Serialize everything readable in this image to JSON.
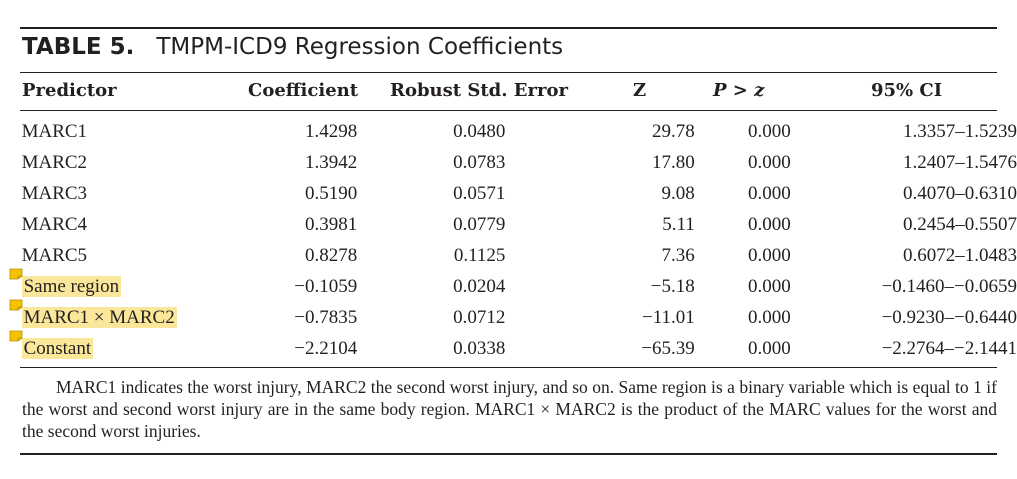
{
  "table": {
    "number": "TABLE 5.",
    "title": "TMPM-ICD9 Regression Coefficients",
    "columns": [
      "Predictor",
      "Coefficient",
      "Robust Std. Error",
      "Z",
      "P > z",
      "95% CI"
    ],
    "rows": [
      {
        "predictor": "MARC1",
        "coefficient": "1.4298",
        "se": "0.0480",
        "z": "29.78",
        "p": "0.000",
        "ci": "1.3357–1.5239",
        "highlighted": false
      },
      {
        "predictor": "MARC2",
        "coefficient": "1.3942",
        "se": "0.0783",
        "z": "17.80",
        "p": "0.000",
        "ci": "1.2407–1.5476",
        "highlighted": false
      },
      {
        "predictor": "MARC3",
        "coefficient": "0.5190",
        "se": "0.0571",
        "z": "9.08",
        "p": "0.000",
        "ci": "0.4070–0.6310",
        "highlighted": false
      },
      {
        "predictor": "MARC4",
        "coefficient": "0.3981",
        "se": "0.0779",
        "z": "5.11",
        "p": "0.000",
        "ci": "0.2454–0.5507",
        "highlighted": false
      },
      {
        "predictor": "MARC5",
        "coefficient": "0.8278",
        "se": "0.1125",
        "z": "7.36",
        "p": "0.000",
        "ci": "0.6072–1.0483",
        "highlighted": false
      },
      {
        "predictor": "Same region",
        "coefficient": "−0.1059",
        "se": "0.0204",
        "z": "−5.18",
        "p": "0.000",
        "ci": "−0.1460–−0.0659",
        "highlighted": true
      },
      {
        "predictor": "MARC1 × MARC2",
        "coefficient": "−0.7835",
        "se": "0.0712",
        "z": "−11.01",
        "p": "0.000",
        "ci": "−0.9230–−0.6440",
        "highlighted": true
      },
      {
        "predictor": "Constant",
        "coefficient": "−2.2104",
        "se": "0.0338",
        "z": "−65.39",
        "p": "0.000",
        "ci": "−2.2764–−2.1441",
        "highlighted": true
      }
    ],
    "footnote": "MARC1 indicates the worst injury, MARC2 the second worst injury, and so on. Same region is a binary variable which is equal to 1 if the worst and second worst injury are in the same body region. MARC1 × MARC2 is the product of the MARC values for the worst and the second worst injuries."
  },
  "colors": {
    "text": "#231f20",
    "highlight": "#fbe79a",
    "note_marker": "#f5c400"
  },
  "icons": {
    "annotation_marker": "sticky-note-icon"
  }
}
